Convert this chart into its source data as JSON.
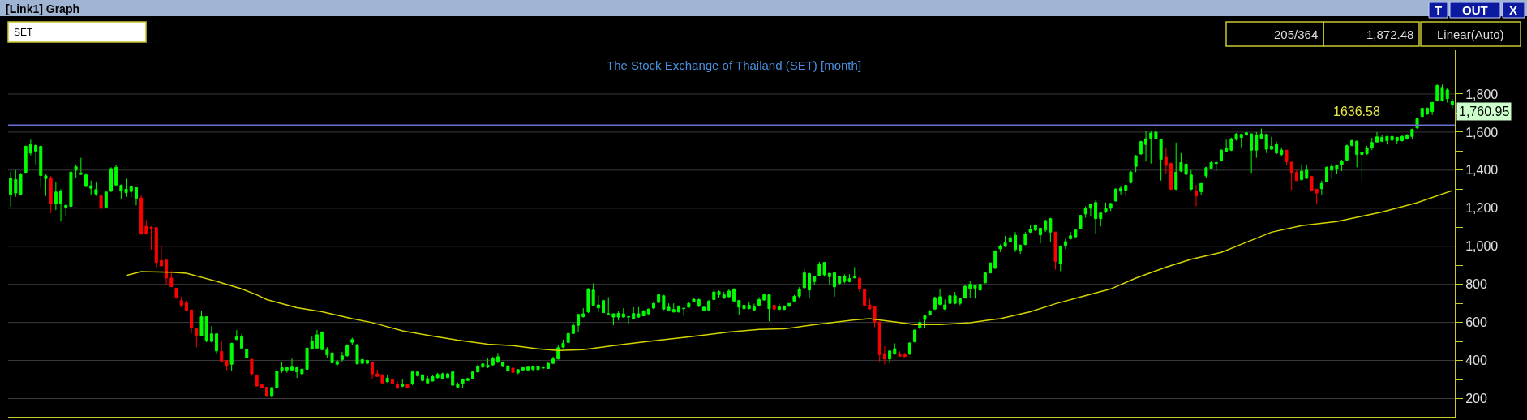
{
  "chart_data": {
    "type": "candlestick",
    "title": "The Stock Exchange of Thailand (SET) [month]",
    "categories": [
      null,
      null,
      null,
      null,
      null,
      null,
      null,
      null,
      null,
      null,
      null,
      null,
      null,
      null,
      null,
      null,
      null,
      null,
      null,
      null,
      null,
      null,
      null,
      null,
      null,
      null,
      null,
      null,
      null,
      null,
      null,
      null,
      null,
      null,
      null,
      null,
      null,
      null,
      null,
      null,
      null,
      null,
      null,
      null,
      null,
      null,
      null,
      null,
      null,
      null,
      null,
      null,
      null,
      null,
      null,
      null,
      null,
      null,
      null,
      null,
      null,
      null,
      null,
      null,
      null,
      null,
      null,
      null,
      null,
      null,
      null,
      null,
      null,
      null,
      null,
      null,
      null,
      null,
      null,
      null,
      null,
      null,
      null,
      null,
      null,
      null,
      null,
      null,
      null,
      null,
      null,
      null,
      null,
      null,
      null,
      null,
      null,
      null,
      null,
      null,
      null,
      null,
      null,
      null,
      null,
      null,
      null,
      null,
      null,
      null,
      null,
      null,
      null,
      null,
      null,
      null,
      null,
      null,
      null,
      null,
      null,
      null,
      null,
      null,
      null,
      null,
      null,
      null,
      null,
      null,
      null,
      null,
      null,
      null,
      null,
      null,
      null,
      null,
      null,
      null,
      null,
      null,
      null,
      null,
      null,
      null,
      null,
      null,
      null,
      null,
      null,
      null,
      null,
      null,
      null,
      null,
      null,
      null,
      null,
      null,
      null,
      null,
      null,
      null,
      null,
      null,
      null,
      null,
      null,
      null,
      null,
      null,
      null,
      null,
      null,
      null,
      null,
      null,
      null,
      null,
      null,
      null,
      null,
      null,
      null,
      null,
      null,
      null,
      null,
      null,
      null,
      null,
      null,
      null,
      null,
      null,
      null,
      null,
      null,
      null,
      null,
      null,
      null,
      null,
      null,
      null,
      null,
      null,
      null,
      null,
      null,
      null,
      null,
      null,
      null,
      null,
      null,
      null,
      null,
      null,
      null,
      null,
      null,
      null,
      null,
      null,
      null,
      null,
      null,
      null,
      null,
      null,
      null,
      null,
      null,
      null,
      null,
      null,
      null,
      null,
      null,
      null,
      null,
      null,
      null,
      null,
      null,
      null,
      null,
      null,
      null,
      null,
      null,
      null,
      null,
      null,
      null,
      null,
      null,
      null,
      null,
      null,
      null,
      null,
      null,
      null,
      null,
      null,
      null,
      null,
      null,
      null,
      null,
      null,
      null,
      null,
      null,
      null,
      null,
      null,
      null,
      null,
      null,
      null,
      null,
      null,
      null,
      null
    ],
    "ohlc": [
      [
        1273,
        1393,
        1209,
        1358
      ],
      [
        1280,
        1400,
        1260,
        1350
      ],
      [
        1273,
        1385,
        1270,
        1380
      ],
      [
        1389,
        1530,
        1385,
        1525
      ],
      [
        1490,
        1560,
        1478,
        1535
      ],
      [
        1500,
        1535,
        1430,
        1530
      ],
      [
        1372,
        1530,
        1308,
        1525
      ],
      [
        1355,
        1380,
        1265,
        1370
      ],
      [
        1360,
        1370,
        1175,
        1225
      ],
      [
        1225,
        1340,
        1190,
        1285
      ],
      [
        1225,
        1300,
        1130,
        1290
      ],
      [
        1205,
        1220,
        1160,
        1215
      ],
      [
        1210,
        1395,
        1205,
        1390
      ],
      [
        1400,
        1430,
        1360,
        1418
      ],
      [
        1378,
        1465,
        1375,
        1385
      ],
      [
        1315,
        1385,
        1310,
        1375
      ],
      [
        1305,
        1345,
        1272,
        1318
      ],
      [
        1275,
        1335,
        1265,
        1298
      ],
      [
        1265,
        1270,
        1175,
        1200
      ],
      [
        1205,
        1290,
        1200,
        1285
      ],
      [
        1290,
        1415,
        1285,
        1408
      ],
      [
        1322,
        1425,
        1320,
        1415
      ],
      [
        1290,
        1325,
        1250,
        1320
      ],
      [
        1282,
        1355,
        1260,
        1300
      ],
      [
        1288,
        1315,
        1258,
        1312
      ],
      [
        1252,
        1310,
        1215,
        1308
      ],
      [
        1254,
        1272,
        1060,
        1067
      ],
      [
        1105,
        1138,
        1062,
        1065
      ],
      [
        1100,
        1105,
        982,
        1095
      ],
      [
        1098,
        1100,
        890,
        915
      ],
      [
        925,
        1005,
        897,
        897
      ],
      [
        928,
        928,
        798,
        833
      ],
      [
        833,
        870,
        787,
        788
      ],
      [
        780,
        780,
        725,
        731
      ],
      [
        715,
        736,
        678,
        690
      ],
      [
        703,
        715,
        662,
        663
      ],
      [
        666,
        666,
        542,
        571
      ],
      [
        566,
        566,
        470,
        532
      ],
      [
        530,
        660,
        530,
        630
      ],
      [
        507,
        632,
        496,
        630
      ],
      [
        500,
        580,
        495,
        540
      ],
      [
        450,
        540,
        435,
        540
      ],
      [
        447,
        505,
        390,
        396
      ],
      [
        400,
        400,
        350,
        372
      ],
      [
        380,
        493,
        344,
        490
      ],
      [
        510,
        560,
        508,
        525
      ],
      [
        465,
        540,
        465,
        525
      ],
      [
        414,
        462,
        410,
        460
      ],
      [
        407,
        407,
        320,
        330
      ],
      [
        322,
        322,
        265,
        266
      ],
      [
        272,
        280,
        255,
        257
      ],
      [
        260,
        260,
        208,
        212
      ],
      [
        211,
        260,
        204,
        258
      ],
      [
        258,
        357,
        250,
        345
      ],
      [
        345,
        390,
        335,
        362
      ],
      [
        350,
        362,
        335,
        362
      ],
      [
        350,
        410,
        345,
        365
      ],
      [
        340,
        365,
        308,
        362
      ],
      [
        330,
        355,
        316,
        355
      ],
      [
        354,
        468,
        352,
        465
      ],
      [
        460,
        525,
        457,
        502
      ],
      [
        465,
        560,
        460,
        535
      ],
      [
        457,
        552,
        455,
        550
      ],
      [
        430,
        470,
        412,
        455
      ],
      [
        388,
        443,
        379,
        440
      ],
      [
        380,
        405,
        365,
        395
      ],
      [
        405,
        445,
        395,
        425
      ],
      [
        425,
        485,
        420,
        480
      ],
      [
        495,
        520,
        480,
        510
      ],
      [
        382,
        485,
        380,
        483
      ],
      [
        385,
        415,
        378,
        405
      ],
      [
        385,
        405,
        380,
        400
      ],
      [
        392,
        392,
        300,
        330
      ],
      [
        330,
        352,
        315,
        316
      ],
      [
        325,
        325,
        282,
        282
      ],
      [
        288,
        325,
        285,
        307
      ],
      [
        300,
        300,
        277,
        279
      ],
      [
        277,
        290,
        250,
        255
      ],
      [
        265,
        300,
        260,
        275
      ],
      [
        277,
        277,
        257,
        258
      ],
      [
        278,
        348,
        270,
        340
      ],
      [
        320,
        345,
        315,
        340
      ],
      [
        295,
        325,
        290,
        325
      ],
      [
        282,
        318,
        278,
        305
      ],
      [
        292,
        325,
        290,
        315
      ],
      [
        310,
        335,
        305,
        327
      ],
      [
        305,
        337,
        300,
        330
      ],
      [
        310,
        335,
        308,
        330
      ],
      [
        270,
        345,
        268,
        340
      ],
      [
        260,
        285,
        255,
        275
      ],
      [
        280,
        305,
        255,
        300
      ],
      [
        295,
        310,
        292,
        305
      ],
      [
        305,
        345,
        300,
        340
      ],
      [
        340,
        380,
        335,
        370
      ],
      [
        365,
        385,
        360,
        382
      ],
      [
        365,
        410,
        360,
        375
      ],
      [
        377,
        420,
        370,
        410
      ],
      [
        395,
        440,
        385,
        420
      ],
      [
        368,
        395,
        365,
        390
      ],
      [
        345,
        372,
        340,
        372
      ],
      [
        360,
        362,
        335,
        338
      ],
      [
        335,
        355,
        328,
        352
      ],
      [
        350,
        365,
        348,
        362
      ],
      [
        350,
        368,
        348,
        365
      ],
      [
        352,
        372,
        348,
        368
      ],
      [
        352,
        380,
        350,
        370
      ],
      [
        360,
        375,
        350,
        362
      ],
      [
        358,
        390,
        355,
        385
      ],
      [
        385,
        420,
        380,
        408
      ],
      [
        408,
        480,
        405,
        467
      ],
      [
        470,
        510,
        465,
        490
      ],
      [
        495,
        545,
        490,
        542
      ],
      [
        542,
        600,
        540,
        585
      ],
      [
        585,
        645,
        550,
        642
      ],
      [
        630,
        675,
        625,
        645
      ],
      [
        655,
        780,
        650,
        776
      ],
      [
        690,
        805,
        685,
        770
      ],
      [
        676,
        740,
        655,
        692
      ],
      [
        651,
        718,
        650,
        715
      ],
      [
        643,
        733,
        638,
        645
      ],
      [
        628,
        648,
        585,
        645
      ],
      [
        628,
        662,
        610,
        647
      ],
      [
        628,
        675,
        625,
        645
      ],
      [
        628,
        632,
        595,
        630
      ],
      [
        618,
        680,
        615,
        647
      ],
      [
        628,
        680,
        625,
        645
      ],
      [
        635,
        665,
        632,
        660
      ],
      [
        645,
        673,
        640,
        670
      ],
      [
        675,
        710,
        670,
        700
      ],
      [
        705,
        748,
        702,
        745
      ],
      [
        670,
        745,
        665,
        740
      ],
      [
        663,
        700,
        660,
        680
      ],
      [
        655,
        700,
        652,
        668
      ],
      [
        655,
        690,
        652,
        682
      ],
      [
        672,
        675,
        635,
        674
      ],
      [
        680,
        705,
        678,
        700
      ],
      [
        708,
        730,
        705,
        722
      ],
      [
        685,
        725,
        680,
        720
      ],
      [
        662,
        683,
        660,
        680
      ],
      [
        665,
        718,
        660,
        712
      ],
      [
        720,
        775,
        718,
        760
      ],
      [
        745,
        768,
        730,
        762
      ],
      [
        727,
        760,
        725,
        745
      ],
      [
        735,
        775,
        730,
        765
      ],
      [
        712,
        780,
        710,
        775
      ],
      [
        680,
        718,
        640,
        715
      ],
      [
        672,
        690,
        665,
        690
      ],
      [
        672,
        705,
        670,
        690
      ],
      [
        665,
        698,
        662,
        682
      ],
      [
        690,
        733,
        688,
        720
      ],
      [
        718,
        748,
        715,
        745
      ],
      [
        672,
        748,
        606,
        745
      ],
      [
        690,
        690,
        620,
        670
      ],
      [
        668,
        700,
        665,
        682
      ],
      [
        668,
        690,
        665,
        685
      ],
      [
        685,
        700,
        682,
        700
      ],
      [
        712,
        745,
        710,
        737
      ],
      [
        738,
        785,
        725,
        775
      ],
      [
        782,
        880,
        780,
        860
      ],
      [
        770,
        860,
        725,
        857
      ],
      [
        815,
        843,
        795,
        843
      ],
      [
        845,
        918,
        843,
        905
      ],
      [
        850,
        917,
        840,
        915
      ],
      [
        840,
        858,
        800,
        858
      ],
      [
        787,
        862,
        735,
        860
      ],
      [
        805,
        845,
        795,
        843
      ],
      [
        815,
        853,
        805,
        843
      ],
      [
        815,
        853,
        810,
        830
      ],
      [
        835,
        890,
        830,
        838
      ],
      [
        832,
        838,
        760,
        778
      ],
      [
        775,
        775,
        690,
        690
      ],
      [
        692,
        725,
        670,
        670
      ],
      [
        685,
        685,
        575,
        603
      ],
      [
        603,
        603,
        390,
        430
      ],
      [
        436,
        475,
        380,
        408
      ],
      [
        408,
        450,
        385,
        450
      ],
      [
        435,
        490,
        430,
        462
      ],
      [
        436,
        448,
        420,
        422
      ],
      [
        433,
        440,
        420,
        420
      ],
      [
        436,
        495,
        428,
        492
      ],
      [
        498,
        562,
        495,
        560
      ],
      [
        570,
        620,
        565,
        600
      ],
      [
        615,
        640,
        570,
        635
      ],
      [
        640,
        665,
        635,
        660
      ],
      [
        670,
        735,
        665,
        730
      ],
      [
        695,
        778,
        690,
        735
      ],
      [
        670,
        720,
        665,
        692
      ],
      [
        700,
        750,
        698,
        740
      ],
      [
        700,
        760,
        695,
        740
      ],
      [
        700,
        725,
        690,
        725
      ],
      [
        728,
        795,
        725,
        790
      ],
      [
        778,
        818,
        728,
        800
      ],
      [
        780,
        795,
        725,
        795
      ],
      [
        770,
        800,
        765,
        800
      ],
      [
        808,
        865,
        805,
        860
      ],
      [
        860,
        915,
        858,
        913
      ],
      [
        885,
        980,
        880,
        975
      ],
      [
        987,
        1010,
        970,
        1000
      ],
      [
        1000,
        1055,
        995,
        1018
      ],
      [
        1025,
        1058,
        1020,
        1045
      ],
      [
        983,
        1075,
        970,
        1058
      ],
      [
        980,
        1010,
        960,
        1005
      ],
      [
        1010,
        1075,
        1005,
        1065
      ],
      [
        1075,
        1110,
        1070,
        1090
      ],
      [
        1085,
        1115,
        1080,
        1110
      ],
      [
        1060,
        1095,
        1015,
        1095
      ],
      [
        1085,
        1140,
        1075,
        1135
      ],
      [
        1075,
        1150,
        1025,
        1145
      ],
      [
        1075,
        1075,
        877,
        920
      ],
      [
        910,
        1005,
        870,
        1000
      ],
      [
        1005,
        1040,
        985,
        1025
      ],
      [
        1040,
        1075,
        1035,
        1055
      ],
      [
        1050,
        1090,
        1045,
        1085
      ],
      [
        1095,
        1165,
        1090,
        1162
      ],
      [
        1170,
        1210,
        1150,
        1200
      ],
      [
        1200,
        1225,
        1160,
        1222
      ],
      [
        1145,
        1242,
        1065,
        1230
      ],
      [
        1145,
        1175,
        1105,
        1175
      ],
      [
        1180,
        1230,
        1175,
        1200
      ],
      [
        1200,
        1228,
        1185,
        1225
      ],
      [
        1238,
        1305,
        1235,
        1300
      ],
      [
        1290,
        1318,
        1272,
        1305
      ],
      [
        1295,
        1325,
        1265,
        1320
      ],
      [
        1335,
        1395,
        1330,
        1390
      ],
      [
        1420,
        1480,
        1390,
        1475
      ],
      [
        1485,
        1555,
        1480,
        1550
      ],
      [
        1535,
        1605,
        1445,
        1565
      ],
      [
        1568,
        1605,
        1435,
        1595
      ],
      [
        1565,
        1655,
        1562,
        1600
      ],
      [
        1457,
        1562,
        1345,
        1560
      ],
      [
        1468,
        1520,
        1380,
        1425
      ],
      [
        1435,
        1440,
        1295,
        1300
      ],
      [
        1300,
        1545,
        1295,
        1390
      ],
      [
        1395,
        1490,
        1390,
        1440
      ],
      [
        1378,
        1460,
        1350,
        1432
      ],
      [
        1300,
        1400,
        1295,
        1375
      ],
      [
        1290,
        1322,
        1210,
        1265
      ],
      [
        1287,
        1332,
        1272,
        1330
      ],
      [
        1370,
        1418,
        1360,
        1413
      ],
      [
        1410,
        1450,
        1405,
        1440
      ],
      [
        1435,
        1450,
        1395,
        1440
      ],
      [
        1450,
        1510,
        1445,
        1505
      ],
      [
        1500,
        1560,
        1495,
        1515
      ],
      [
        1505,
        1570,
        1500,
        1565
      ],
      [
        1562,
        1595,
        1555,
        1590
      ],
      [
        1572,
        1590,
        1520,
        1588
      ],
      [
        1585,
        1600,
        1580,
        1597
      ],
      [
        1505,
        1595,
        1385,
        1590
      ],
      [
        1505,
        1600,
        1465,
        1585
      ],
      [
        1568,
        1618,
        1565,
        1590
      ],
      [
        1510,
        1590,
        1490,
        1588
      ],
      [
        1510,
        1575,
        1508,
        1525
      ],
      [
        1490,
        1550,
        1485,
        1535
      ],
      [
        1482,
        1520,
        1475,
        1505
      ],
      [
        1505,
        1505,
        1425,
        1445
      ],
      [
        1442,
        1442,
        1295,
        1388
      ],
      [
        1388,
        1400,
        1345,
        1345
      ],
      [
        1350,
        1430,
        1345,
        1395
      ],
      [
        1357,
        1430,
        1355,
        1400
      ],
      [
        1368,
        1370,
        1290,
        1293
      ],
      [
        1300,
        1300,
        1222,
        1280
      ],
      [
        1303,
        1345,
        1270,
        1330
      ],
      [
        1340,
        1420,
        1335,
        1415
      ],
      [
        1400,
        1435,
        1355,
        1420
      ],
      [
        1406,
        1430,
        1380,
        1425
      ],
      [
        1430,
        1455,
        1395,
        1445
      ],
      [
        1453,
        1535,
        1450,
        1528
      ],
      [
        1530,
        1560,
        1525,
        1555
      ],
      [
        1482,
        1555,
        1415,
        1552
      ],
      [
        1482,
        1498,
        1345,
        1495
      ],
      [
        1487,
        1527,
        1480,
        1515
      ],
      [
        1520,
        1570,
        1505,
        1545
      ],
      [
        1548,
        1600,
        1545,
        1575
      ],
      [
        1552,
        1585,
        1548,
        1572
      ],
      [
        1555,
        1580,
        1535,
        1577
      ],
      [
        1558,
        1585,
        1550,
        1577
      ],
      [
        1555,
        1575,
        1538,
        1572
      ],
      [
        1555,
        1585,
        1550,
        1577
      ],
      [
        1565,
        1590,
        1560,
        1583
      ],
      [
        1577,
        1618,
        1562,
        1614
      ],
      [
        1622,
        1672,
        1618,
        1670
      ],
      [
        1682,
        1728,
        1678,
        1725
      ],
      [
        1697,
        1730,
        1690,
        1725
      ],
      [
        1708,
        1758,
        1690,
        1756
      ],
      [
        1765,
        1850,
        1760,
        1845
      ],
      [
        1765,
        1850,
        1760,
        1835
      ],
      [
        1775,
        1830,
        1755,
        1822
      ],
      [
        1745,
        1775,
        1725,
        1760.95
      ]
    ],
    "series": [
      {
        "type": "line",
        "color": "#d4d400",
        "values": [
          null,
          null,
          null,
          null,
          null,
          null,
          null,
          null,
          null,
          null,
          null,
          null,
          null,
          null,
          null,
          null,
          null,
          null,
          null,
          null,
          null,
          null,
          null,
          847,
          null,
          null,
          867,
          null,
          null,
          null,
          null,
          null,
          864,
          null,
          null,
          858,
          null,
          null,
          null,
          null,
          null,
          816,
          null,
          null,
          null,
          null,
          776,
          null,
          null,
          745,
          null,
          720,
          null,
          null,
          null,
          null,
          null,
          677,
          null,
          null,
          null,
          null,
          656,
          null,
          null,
          null,
          null,
          null,
          620,
          null,
          null,
          null,
          599,
          null,
          null,
          null,
          null,
          null,
          556,
          null,
          null,
          null,
          null,
          null,
          528,
          null,
          null,
          null,
          null,
          507,
          null,
          null,
          null,
          null,
          null,
          486,
          null,
          null,
          null,
          null,
          478,
          null,
          null,
          null,
          null,
          461,
          null,
          null,
          null,
          453,
          null,
          null,
          null,
          null,
          457,
          null,
          null,
          null,
          null,
          null,
          478,
          null,
          null,
          null,
          null,
          null,
          null,
          500,
          null,
          null,
          null,
          null,
          null,
          null,
          null,
          524,
          null,
          null,
          null,
          null,
          null,
          null,
          null,
          549,
          null,
          null,
          null,
          null,
          null,
          563,
          null,
          null,
          null,
          null,
          566,
          null,
          null,
          null,
          null,
          585,
          null,
          null,
          null,
          null,
          null,
          null,
          null,
          null,
          613,
          null,
          null,
          620,
          null,
          null,
          null,
          null,
          603,
          null,
          null,
          null,
          589,
          null,
          null,
          null,
          null,
          589,
          null,
          null,
          null,
          null,
          null,
          599,
          null,
          null,
          null,
          613,
          null,
          620,
          null,
          null,
          null,
          null,
          null,
          656,
          null,
          null,
          null,
          null,
          698,
          null,
          null,
          null,
          null,
          734,
          null,
          null,
          null,
          null,
          null,
          776,
          null,
          null,
          null,
          null,
          833,
          null,
          null,
          null,
          null,
          null,
          890,
          null,
          null,
          null,
          null,
          932,
          null,
          null,
          null,
          null,
          null,
          968,
          null,
          null,
          null,
          null,
          null,
          null,
          null,
          null,
          null,
          1074,
          null,
          null,
          null,
          null,
          null,
          1109,
          null,
          null,
          null,
          null,
          null,
          null,
          1130,
          null,
          null,
          null,
          null,
          null,
          null,
          null,
          null,
          1180,
          null,
          null,
          null,
          null,
          null,
          null,
          1229,
          null,
          null,
          null,
          null,
          null,
          null,
          1293
        ]
      }
    ],
    "ylim": [
      100,
      2030
    ],
    "yticks": [
      200,
      {
        "value": 300,
        "label": null
      },
      400,
      {
        "value": 500,
        "label": null
      },
      600,
      {
        "value": 700,
        "label": null
      },
      800,
      {
        "value": 900,
        "label": null
      },
      {
        "value": 1000,
        "label": "1,000"
      },
      {
        "value": 1100,
        "label": null
      },
      {
        "value": 1200,
        "label": "1,200"
      },
      {
        "value": 1300,
        "label": null
      },
      {
        "value": 1400,
        "label": "1,400"
      },
      {
        "value": 1500,
        "label": null
      },
      {
        "value": 1600,
        "label": "1,600"
      },
      {
        "value": 1700,
        "label": null
      },
      {
        "value": 1800,
        "label": "1,800"
      },
      {
        "value": 1900,
        "label": null
      }
    ],
    "grid": "y",
    "tick_labels": "y",
    "ref_lines": [
      {
        "axis": "y",
        "value": 1636.58,
        "label": "1636.58",
        "color": "#6f6fd8"
      }
    ],
    "annotations": [
      "[Link1] Graph",
      "SET",
      "205/364",
      "1,872.48",
      "Linear(Auto)",
      "T",
      "OUT",
      "X",
      "1,760.95"
    ]
  }
}
